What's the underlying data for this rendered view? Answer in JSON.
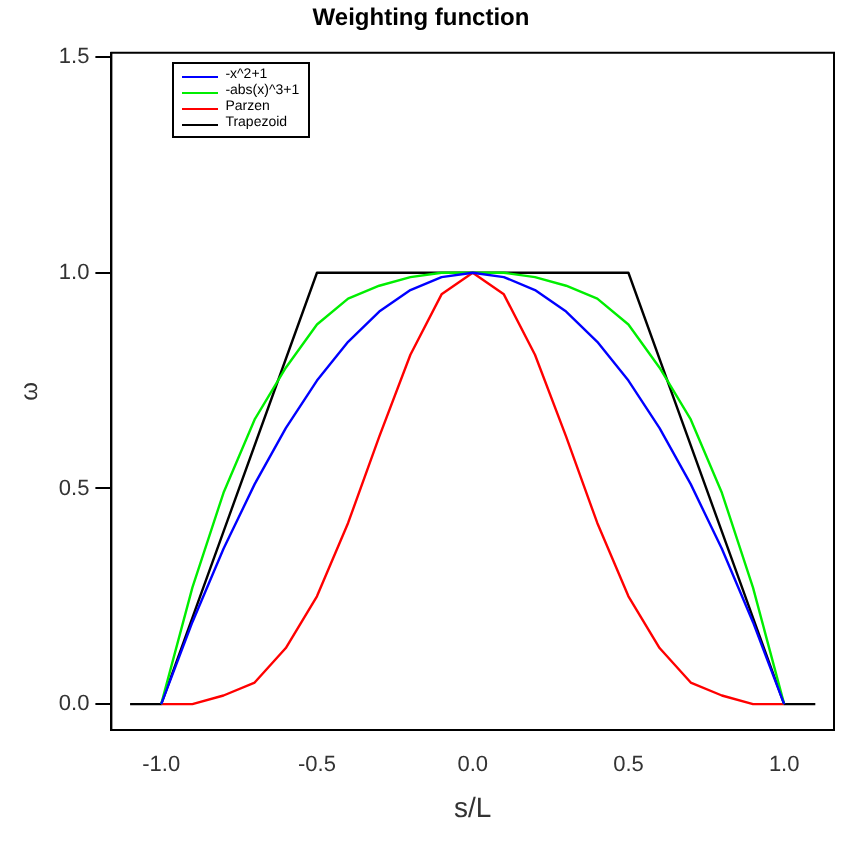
{
  "chart_data": {
    "type": "line",
    "title": "Weighting function",
    "xlabel": "s/L",
    "ylabel": "ω",
    "xlim": [
      -1.16,
      1.16
    ],
    "xticks": [
      {
        "value": -1,
        "label": "-1.0"
      },
      -0.5,
      {
        "value": 0,
        "label": "0.0"
      },
      0.5,
      {
        "value": 1,
        "label": "1.0"
      }
    ],
    "ylim": [
      -0.06,
      1.51
    ],
    "yticks": [
      {
        "value": 0,
        "label": "0.0"
      },
      0.5,
      {
        "value": 1,
        "label": "1.0"
      },
      1.5
    ],
    "grid": false,
    "legend": "top left",
    "marker": "none",
    "line_style": "solid",
    "series": [
      {
        "name": "-x^2+1",
        "color": "#0000ff",
        "x": [
          -1,
          -0.9,
          -0.8,
          -0.7,
          -0.6,
          -0.5,
          -0.4,
          -0.3,
          -0.2,
          -0.1,
          0,
          0.1,
          0.2,
          0.3,
          0.4,
          0.5,
          0.6,
          0.7,
          0.8,
          0.9,
          1
        ],
        "values": [
          0,
          0.19,
          0.36,
          0.51,
          0.64,
          0.75,
          0.84,
          0.91,
          0.96,
          0.99,
          1,
          0.99,
          0.96,
          0.91,
          0.84,
          0.75,
          0.64,
          0.51,
          0.36,
          0.19,
          0
        ]
      },
      {
        "name": "-abs(x)^3+1",
        "color": "#00ee00",
        "x": [
          -1,
          -0.9,
          -0.8,
          -0.7,
          -0.6,
          -0.5,
          -0.4,
          -0.3,
          -0.2,
          -0.1,
          0,
          0.1,
          0.2,
          0.3,
          0.4,
          0.5,
          0.6,
          0.7,
          0.8,
          0.9,
          1
        ],
        "values": [
          0,
          0.27,
          0.49,
          0.66,
          0.78,
          0.88,
          0.94,
          0.97,
          0.99,
          1,
          1,
          1,
          0.99,
          0.97,
          0.94,
          0.88,
          0.78,
          0.66,
          0.49,
          0.27,
          0
        ]
      },
      {
        "name": "Parzen",
        "color": "#ff0000",
        "x": [
          -1,
          -0.9,
          -0.8,
          -0.7,
          -0.6,
          -0.5,
          -0.4,
          -0.3,
          -0.2,
          -0.1,
          0,
          0.1,
          0.2,
          0.3,
          0.4,
          0.5,
          0.6,
          0.7,
          0.8,
          0.9,
          1
        ],
        "values": [
          0,
          0,
          0.02,
          0.05,
          0.13,
          0.25,
          0.42,
          0.62,
          0.81,
          0.95,
          1,
          0.95,
          0.81,
          0.62,
          0.42,
          0.25,
          0.13,
          0.05,
          0.02,
          0,
          0
        ]
      },
      {
        "name": "Trapezoid",
        "color": "#000000",
        "x": [
          -1.1,
          -1,
          -0.5,
          0.5,
          1,
          1.1
        ],
        "values": [
          0,
          0,
          1,
          1,
          0,
          0
        ]
      }
    ]
  }
}
